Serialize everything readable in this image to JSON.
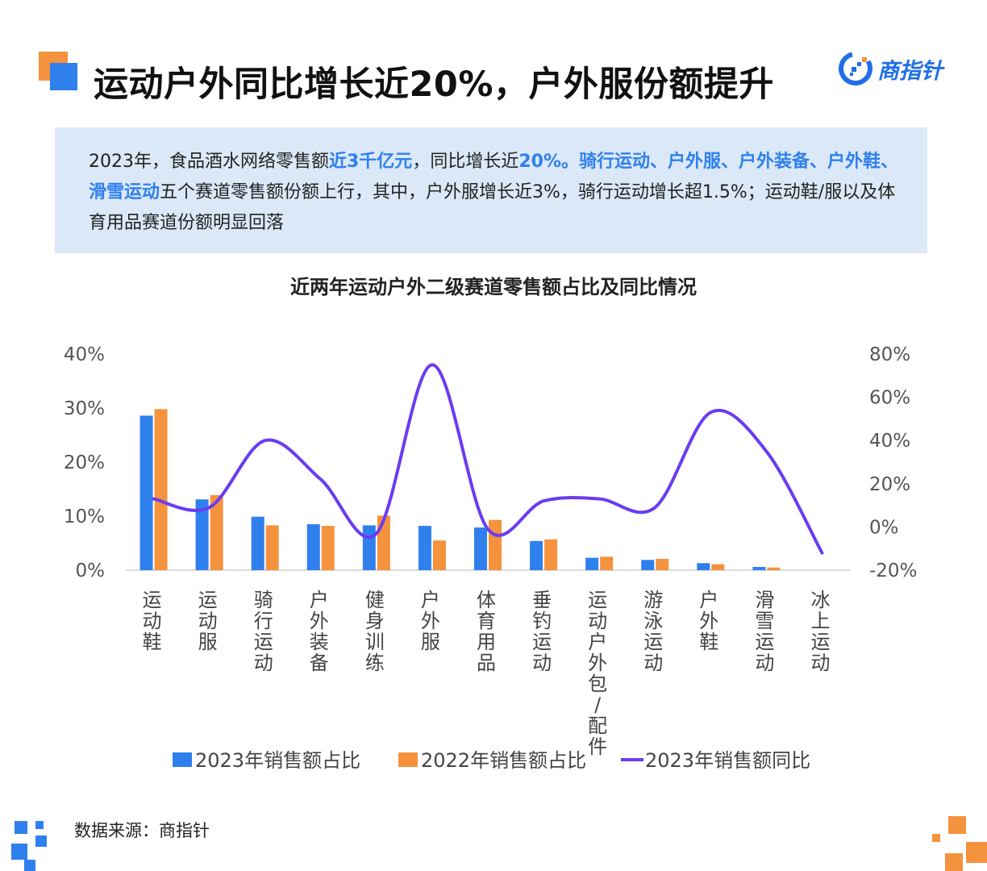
{
  "header": {
    "title": "运动户外同比增长近20%，户外服份额提升",
    "logo_text": "商指针"
  },
  "summary": {
    "segments": [
      {
        "text": "2023年，食品酒水网络零售额",
        "hl": false
      },
      {
        "text": "近3千亿元",
        "hl": true
      },
      {
        "text": "，同比增长近",
        "hl": false
      },
      {
        "text": "20%。骑行运动、户外服、户外装备、户外鞋、滑雪运动",
        "hl": true
      },
      {
        "text": "五个赛道零售额份额上行，其中，户外服增长近3%，骑行运动增长超1.5%；运动鞋/服以及体育用品赛道份额明显回落",
        "hl": false
      }
    ]
  },
  "chart_data": {
    "type": "bar",
    "title": "近两年运动户外二级赛道零售额占比及同比情况",
    "categories": [
      "运动鞋",
      "运动服",
      "骑行运动",
      "户外装备",
      "健身训练",
      "户外服",
      "体育用品",
      "垂钓运动",
      "运动户外包/配件",
      "游泳运动",
      "户外鞋",
      "滑雪运动",
      "冰上运动"
    ],
    "left_axis": {
      "ticks": [
        "40%",
        "30%",
        "20%",
        "10%",
        "0%"
      ],
      "ylim": [
        0,
        40
      ]
    },
    "right_axis": {
      "ticks": [
        "80%",
        "60%",
        "40%",
        "20%",
        "0%",
        "-20%"
      ],
      "ylim": [
        -20,
        80
      ]
    },
    "series": [
      {
        "name": "2023年销售额占比",
        "type": "bar",
        "axis": "left",
        "color": "#2f80ed",
        "values": [
          28.6,
          13.1,
          9.9,
          8.5,
          8.3,
          8.2,
          7.9,
          5.4,
          2.3,
          1.9,
          1.3,
          0.6,
          0.0
        ]
      },
      {
        "name": "2022年销售额占比",
        "type": "bar",
        "axis": "left",
        "color": "#f5923e",
        "values": [
          29.8,
          13.9,
          8.3,
          8.2,
          10.1,
          5.5,
          9.3,
          5.7,
          2.5,
          2.1,
          1.1,
          0.5,
          0.0
        ]
      },
      {
        "name": "2023年销售额同比",
        "type": "line",
        "axis": "right",
        "color": "#6a3cf0",
        "values": [
          13,
          9,
          40,
          22,
          -3,
          75,
          -1,
          12,
          13,
          9,
          53,
          35,
          -12
        ]
      }
    ]
  },
  "footer": {
    "source": "数据来源：商指针"
  }
}
